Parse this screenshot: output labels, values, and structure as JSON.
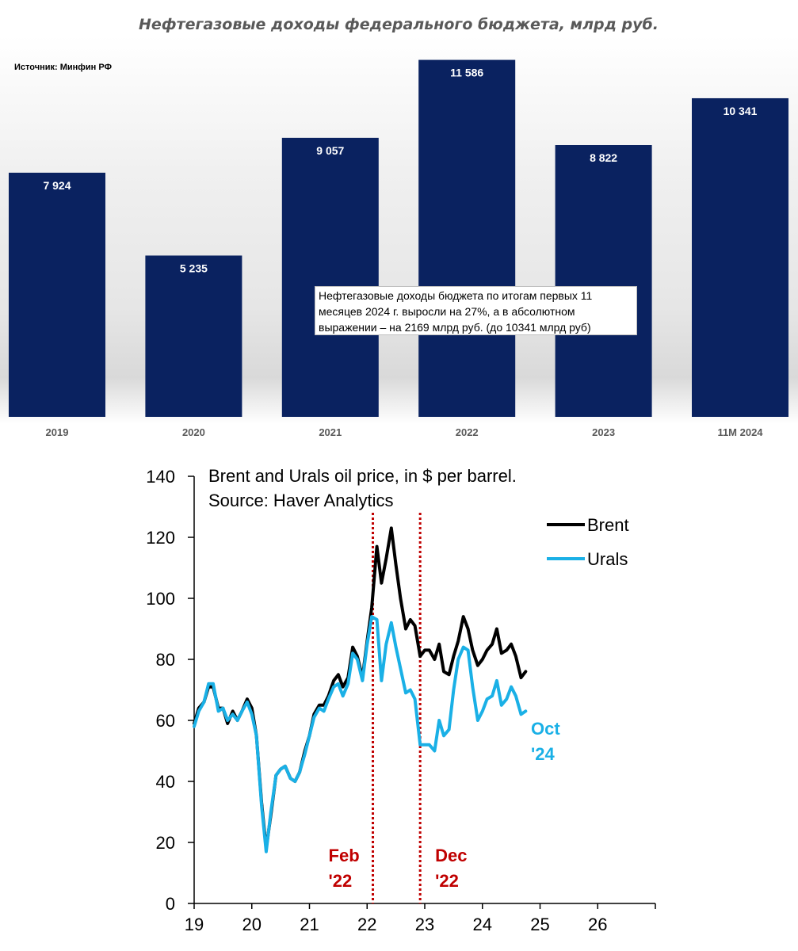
{
  "colors": {
    "bar": "#0a2260",
    "brent": "#000000",
    "urals": "#1ab0e6",
    "event": "#c00000"
  },
  "chart_data": [
    {
      "type": "bar",
      "title": "Нефтегазовые доходы федерального бюджета, млрд руб.",
      "source": "Источник: Минфин РФ",
      "categories": [
        "2019",
        "2020",
        "2021",
        "2022",
        "2023",
        "11M 2024"
      ],
      "values": [
        7924,
        5235,
        9057,
        11586,
        8822,
        10341
      ],
      "value_labels": [
        "7 924",
        "5 235",
        "9 057",
        "11 586",
        "8 822",
        "10 341"
      ],
      "ylim": [
        0,
        11600
      ],
      "annotation": "Нефтегазовые доходы бюджета по итогам первых 11 месяцев 2024 г. выросли на 27%, а в абсолютном выражении – на 2169 млрд руб. (до 10341 млрд руб)"
    },
    {
      "type": "line",
      "title_line1": "Brent and Urals oil price, in $ per barrel.",
      "title_line2": "Source: Haver Analytics",
      "xlim": [
        19,
        27
      ],
      "xticks": [
        19,
        20,
        21,
        22,
        23,
        24,
        25,
        26
      ],
      "ylim": [
        0,
        140
      ],
      "yticks": [
        0,
        20,
        40,
        60,
        80,
        100,
        120,
        140
      ],
      "events": [
        {
          "x": 22.1,
          "label_line1": "Feb",
          "label_line2": "'22"
        },
        {
          "x": 22.92,
          "label_line1": "Dec",
          "label_line2": "'22"
        }
      ],
      "last_label_line1": "Oct",
      "last_label_line2": "'24",
      "series": [
        {
          "name": "Brent",
          "x": [
            19.0,
            19.08,
            19.17,
            19.25,
            19.33,
            19.42,
            19.5,
            19.58,
            19.67,
            19.75,
            19.83,
            19.92,
            20.0,
            20.08,
            20.17,
            20.25,
            20.33,
            20.42,
            20.5,
            20.58,
            20.67,
            20.75,
            20.83,
            20.92,
            21.0,
            21.08,
            21.17,
            21.25,
            21.33,
            21.42,
            21.5,
            21.58,
            21.67,
            21.75,
            21.83,
            21.92,
            22.0,
            22.08,
            22.17,
            22.25,
            22.33,
            22.42,
            22.5,
            22.58,
            22.67,
            22.75,
            22.83,
            22.92,
            23.0,
            23.08,
            23.17,
            23.25,
            23.33,
            23.42,
            23.5,
            23.58,
            23.67,
            23.75,
            23.83,
            23.92,
            24.0,
            24.08,
            24.17,
            24.25,
            24.33,
            24.42,
            24.5,
            24.58,
            24.67,
            24.75
          ],
          "values": [
            59,
            64,
            66,
            71,
            71,
            64,
            64,
            59,
            63,
            60,
            63,
            67,
            64,
            55,
            33,
            18,
            29,
            42,
            44,
            45,
            41,
            40,
            43,
            50,
            55,
            62,
            65,
            65,
            68,
            73,
            75,
            71,
            74,
            84,
            81,
            74,
            86,
            97,
            117,
            105,
            113,
            123,
            111,
            100,
            90,
            93,
            91,
            81,
            83,
            83,
            80,
            85,
            76,
            75,
            81,
            86,
            94,
            90,
            83,
            78,
            80,
            83,
            85,
            90,
            82,
            83,
            85,
            81,
            74,
            76
          ]
        },
        {
          "name": "Urals",
          "x": [
            19.0,
            19.08,
            19.17,
            19.25,
            19.33,
            19.42,
            19.5,
            19.58,
            19.67,
            19.75,
            19.83,
            19.92,
            20.0,
            20.08,
            20.17,
            20.25,
            20.33,
            20.42,
            20.5,
            20.58,
            20.67,
            20.75,
            20.83,
            20.92,
            21.0,
            21.08,
            21.17,
            21.25,
            21.33,
            21.42,
            21.5,
            21.58,
            21.67,
            21.75,
            21.83,
            21.92,
            22.0,
            22.08,
            22.17,
            22.25,
            22.33,
            22.42,
            22.5,
            22.58,
            22.67,
            22.75,
            22.83,
            22.92,
            23.0,
            23.08,
            23.17,
            23.25,
            23.33,
            23.42,
            23.5,
            23.58,
            23.67,
            23.75,
            23.83,
            23.92,
            24.0,
            24.08,
            24.17,
            24.25,
            24.33,
            24.42,
            24.5,
            24.58,
            24.67,
            24.75
          ],
          "values": [
            58,
            63,
            66,
            72,
            72,
            63,
            64,
            60,
            62,
            60,
            63,
            66,
            62,
            55,
            32,
            17,
            30,
            42,
            44,
            45,
            41,
            40,
            43,
            49,
            55,
            61,
            64,
            63,
            67,
            71,
            72,
            68,
            72,
            82,
            80,
            73,
            85,
            94,
            93,
            73,
            85,
            92,
            84,
            77,
            69,
            70,
            67,
            52,
            52,
            52,
            50,
            60,
            55,
            57,
            70,
            80,
            84,
            83,
            71,
            60,
            63,
            67,
            68,
            73,
            65,
            67,
            71,
            68,
            62,
            63
          ]
        }
      ]
    }
  ]
}
